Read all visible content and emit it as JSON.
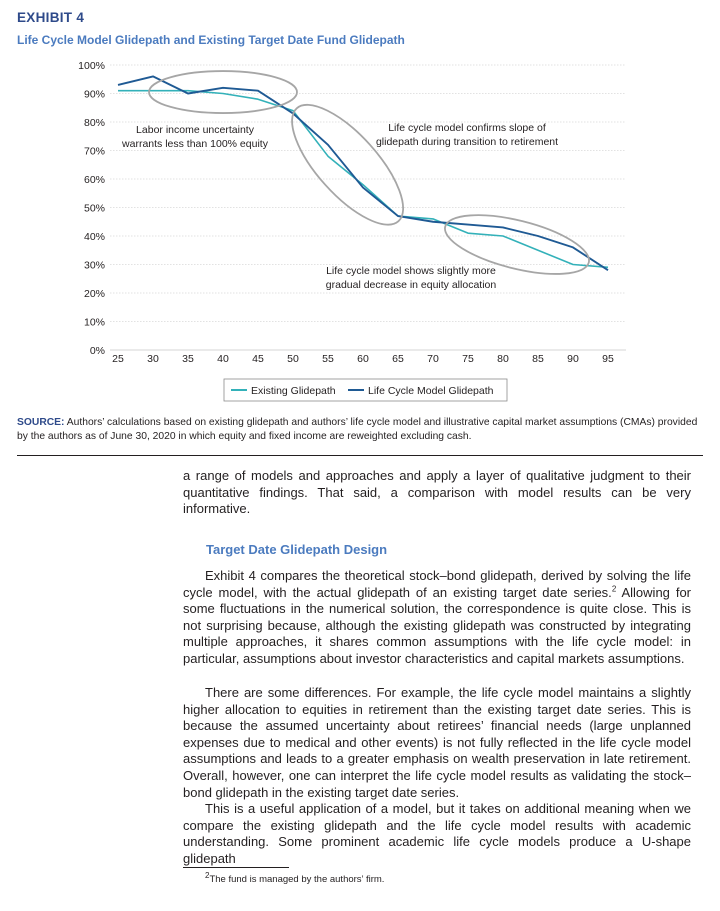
{
  "exhibit_label": "EXHIBIT 4",
  "chart_data": {
    "type": "line",
    "title": "Life Cycle Model Glidepath and Existing Target Date Fund Glidepath",
    "x": [
      25,
      30,
      35,
      40,
      45,
      50,
      55,
      60,
      65,
      70,
      75,
      80,
      85,
      90,
      95
    ],
    "x_ticks": [
      "25",
      "30",
      "35",
      "40",
      "45",
      "50",
      "55",
      "60",
      "65",
      "70",
      "75",
      "80",
      "85",
      "90",
      "95"
    ],
    "y_ticks": [
      "0%",
      "10%",
      "20%",
      "30%",
      "40%",
      "50%",
      "60%",
      "70%",
      "80%",
      "90%",
      "100%"
    ],
    "ylim": [
      0,
      100
    ],
    "xlim": [
      25,
      95
    ],
    "grid": true,
    "series": [
      {
        "name": "Existing Glidepath",
        "color": "#33b1b9",
        "values": [
          91,
          91,
          91,
          90,
          88,
          84,
          68,
          58,
          47,
          46,
          41,
          40,
          35,
          30,
          29
        ]
      },
      {
        "name": "Life Cycle Model Glidepath",
        "color": "#1f5a94",
        "values": [
          93,
          96,
          90,
          92,
          91,
          83,
          72,
          57,
          47,
          45,
          44,
          43,
          40,
          36,
          28
        ]
      }
    ],
    "legend_position": "bottom-center",
    "annotations": [
      {
        "lines": [
          "Labor income uncertainty",
          "warrants less than 100% equity"
        ]
      },
      {
        "lines": [
          "Life cycle model confirms slope of",
          "glidepath during transition to retirement"
        ]
      },
      {
        "lines": [
          "Life cycle model shows slightly more",
          "gradual decrease in equity allocation"
        ]
      }
    ]
  },
  "source": {
    "label": "SOURCE:",
    "text": " Authors’ calculations based on existing glidepath and authors’ life cycle model and illustrative capital market assumptions (CMAs) provided by the authors as of June 30, 2020 in which equity and fixed income are reweighted excluding cash."
  },
  "body": {
    "intro": "a range of models and approaches and apply a layer of qualitative judgment to their quantitative findings. That said, a comparison with model results can be very informative.",
    "section_title": "Target Date Glidepath Design",
    "p1_a": "Exhibit 4 compares the theoretical stock–bond glidepath, derived by solving the life cycle model, with the actual glidepath of an existing target date series.",
    "p1_fn": "2",
    "p1_b": " Allowing for some fluctuations in the numerical solution, the correspondence is quite close. This is not surprising because, although the existing glidepath was constructed by integrating multiple approaches, it shares common assumptions with the life cycle model: in particular, assumptions about investor characteristics and capital markets assumptions.",
    "p2": "There are some differences. For example, the life cycle model maintains a slightly higher allocation to equities in retirement than the existing target date series. This is because the assumed uncertainty about retirees’ financial needs (large unplanned expenses due to medical and other events) is not fully reflected in the life cycle model assumptions and leads to a greater emphasis on wealth preservation in late retirement. Overall, however, one can interpret the life cycle model results as validating the stock–bond glidepath in the existing target date series.",
    "p3": "This is a useful application of a model, but it takes on additional meaning when we compare the existing glidepath and the life cycle model results with academic understanding. Some prominent academic life cycle models produce a U-shape glidepath"
  },
  "footnote": {
    "number": "2",
    "text": "The fund is managed by the authors’ firm."
  }
}
